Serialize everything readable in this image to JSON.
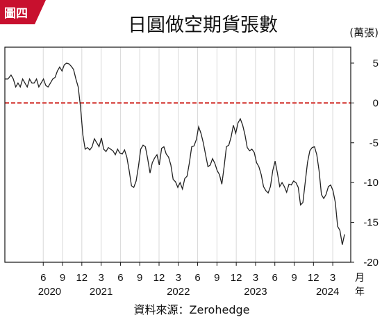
{
  "badge": {
    "label": "圖四",
    "color": "#c8102e"
  },
  "chart_data": {
    "type": "line",
    "title": "日圓做空期貨張數",
    "y_unit": "(萬張)",
    "x_axis_word": "月年",
    "source": "資料來源：Zerohedge",
    "ylim": [
      -20,
      7
    ],
    "y_ticks": [
      5,
      0,
      -5,
      -10,
      -15,
      -20
    ],
    "y_tick_labels": [
      "5",
      "0",
      "-5",
      "-10",
      "-15",
      "-20"
    ],
    "month_ticks": [
      {
        "t": 2020.417,
        "label": "6"
      },
      {
        "t": 2020.667,
        "label": "9"
      },
      {
        "t": 2020.917,
        "label": "12"
      },
      {
        "t": 2021.167,
        "label": "3"
      },
      {
        "t": 2021.417,
        "label": "6"
      },
      {
        "t": 2021.667,
        "label": "9"
      },
      {
        "t": 2021.917,
        "label": "12"
      },
      {
        "t": 2022.167,
        "label": "3"
      },
      {
        "t": 2022.417,
        "label": "6"
      },
      {
        "t": 2022.667,
        "label": "9"
      },
      {
        "t": 2022.917,
        "label": "12"
      },
      {
        "t": 2023.167,
        "label": "3"
      },
      {
        "t": 2023.417,
        "label": "6"
      },
      {
        "t": 2023.667,
        "label": "9"
      },
      {
        "t": 2023.917,
        "label": "12"
      },
      {
        "t": 2024.167,
        "label": "3"
      }
    ],
    "year_labels": [
      {
        "t": 2020.5,
        "label": "2020"
      },
      {
        "t": 2021.167,
        "label": "2021"
      },
      {
        "t": 2022.167,
        "label": "2022"
      },
      {
        "t": 2023.167,
        "label": "2023"
      },
      {
        "t": 2024.1,
        "label": "2024"
      }
    ],
    "reference_line": {
      "y": 0,
      "color": "#d9534f",
      "style": "dashed"
    },
    "line_color": "#222222",
    "grid": "vertical",
    "series": [
      {
        "x": [
          2019.92,
          2019.96,
          2020.0,
          2020.03,
          2020.06,
          2020.09,
          2020.12,
          2020.15,
          2020.18,
          2020.21,
          2020.24,
          2020.27,
          2020.3,
          2020.33,
          2020.36,
          2020.39,
          2020.42,
          2020.45,
          2020.48,
          2020.51,
          2020.54,
          2020.57,
          2020.6,
          2020.63,
          2020.66,
          2020.69,
          2020.72,
          2020.75,
          2020.78,
          2020.81,
          2020.84,
          2020.87,
          2020.9,
          2020.93,
          2020.96,
          2020.99,
          2021.02,
          2021.05,
          2021.08,
          2021.11,
          2021.14,
          2021.17,
          2021.2,
          2021.23,
          2021.26,
          2021.29,
          2021.32,
          2021.35,
          2021.38,
          2021.41,
          2021.44,
          2021.47,
          2021.5,
          2021.53,
          2021.56,
          2021.59,
          2021.62,
          2021.65,
          2021.68,
          2021.71,
          2021.74,
          2021.77,
          2021.8,
          2021.83,
          2021.86,
          2021.89,
          2021.92,
          2021.95,
          2021.98,
          2022.01,
          2022.04,
          2022.07,
          2022.1,
          2022.13,
          2022.16,
          2022.19,
          2022.22,
          2022.25,
          2022.28,
          2022.31,
          2022.34,
          2022.37,
          2022.4,
          2022.43,
          2022.46,
          2022.49,
          2022.52,
          2022.55,
          2022.58,
          2022.61,
          2022.64,
          2022.67,
          2022.7,
          2022.73,
          2022.76,
          2022.79,
          2022.82,
          2022.85,
          2022.88,
          2022.91,
          2022.94,
          2022.97,
          2023.0,
          2023.03,
          2023.06,
          2023.09,
          2023.12,
          2023.15,
          2023.18,
          2023.21,
          2023.24,
          2023.27,
          2023.3,
          2023.33,
          2023.36,
          2023.39,
          2023.42,
          2023.45,
          2023.48,
          2023.51,
          2023.54,
          2023.57,
          2023.6,
          2023.63,
          2023.66,
          2023.69,
          2023.72,
          2023.75,
          2023.78,
          2023.81,
          2023.84,
          2023.87,
          2023.9,
          2023.93,
          2023.96,
          2023.99,
          2024.02,
          2024.05,
          2024.08,
          2024.11,
          2024.14,
          2024.17,
          2024.2,
          2024.23,
          2024.26,
          2024.29,
          2024.32
        ],
        "y": [
          3.0,
          3.0,
          3.5,
          3.0,
          2.0,
          2.5,
          2.0,
          3.0,
          2.5,
          2.0,
          3.0,
          2.5,
          2.5,
          3.0,
          2.0,
          2.5,
          3.0,
          2.2,
          2.0,
          2.5,
          3.0,
          3.2,
          4.0,
          4.5,
          4.0,
          4.8,
          5.0,
          4.9,
          4.6,
          4.2,
          3.0,
          2.0,
          -0.5,
          -4.0,
          -5.8,
          -5.6,
          -5.9,
          -5.5,
          -4.5,
          -5.0,
          -5.5,
          -4.4,
          -5.8,
          -6.1,
          -5.6,
          -5.8,
          -6.0,
          -6.5,
          -5.8,
          -6.3,
          -6.4,
          -5.9,
          -6.8,
          -8.5,
          -10.4,
          -10.6,
          -9.8,
          -8.0,
          -5.8,
          -5.3,
          -5.5,
          -7.0,
          -8.8,
          -7.5,
          -6.9,
          -6.5,
          -7.8,
          -5.7,
          -5.5,
          -6.4,
          -6.8,
          -7.8,
          -9.6,
          -9.9,
          -10.6,
          -10.0,
          -10.8,
          -9.5,
          -9.2,
          -7.5,
          -5.5,
          -5.4,
          -4.6,
          -3.0,
          -3.8,
          -5.0,
          -6.5,
          -8.0,
          -7.8,
          -7.0,
          -7.6,
          -8.5,
          -9.0,
          -10.2,
          -8.0,
          -5.5,
          -5.3,
          -4.3,
          -2.8,
          -3.8,
          -2.5,
          -2.0,
          -2.8,
          -4.0,
          -5.6,
          -6.0,
          -5.8,
          -6.2,
          -7.5,
          -8.0,
          -9.0,
          -10.5,
          -11.0,
          -11.3,
          -10.5,
          -8.5,
          -7.3,
          -8.8,
          -10.5,
          -10.0,
          -10.5,
          -11.2,
          -10.2,
          -10.3,
          -9.8,
          -10.0,
          -10.6,
          -12.8,
          -12.5,
          -10.0,
          -7.5,
          -6.0,
          -5.6,
          -5.5,
          -6.5,
          -8.5,
          -11.5,
          -12.0,
          -11.5,
          -10.5,
          -10.3,
          -11.0,
          -12.5,
          -15.5,
          -16.0,
          -17.8,
          -16.5
        ]
      }
    ]
  }
}
